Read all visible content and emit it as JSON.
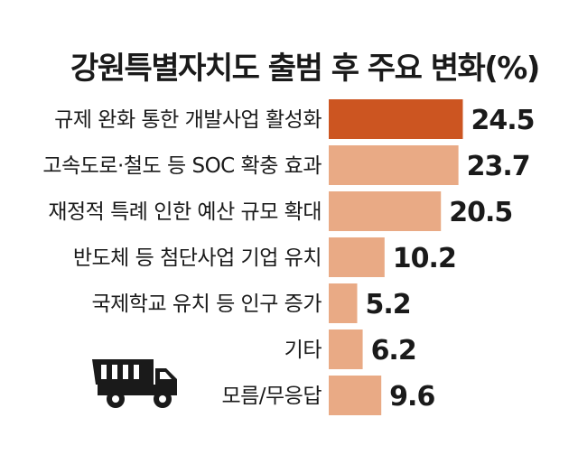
{
  "chart_data": {
    "type": "bar",
    "orientation": "horizontal",
    "title": "강원특별자치도 출범 후 주요 변화(%)",
    "categories": [
      "규제 완화 통한 개발사업 활성화",
      "고속도로·철도 등 SOC 확충 효과",
      "재정적 특례 인한 예산 규모 확대",
      "반도체 등 첨단사업 기업 유치",
      "국제학교 유치 등 인구 증가",
      "기타",
      "모름/무응답"
    ],
    "values": [
      24.5,
      23.7,
      20.5,
      10.2,
      5.2,
      6.2,
      9.6
    ],
    "value_labels": [
      "24.5",
      "23.7",
      "20.5",
      "10.2",
      "5.2",
      "6.2",
      "9.6"
    ],
    "xlim": [
      0,
      30
    ],
    "grid": false,
    "legend": "none",
    "colors": {
      "highlight": "#cc5521",
      "bar": "#e9aa85",
      "text": "#1a1a1a",
      "icon": "#1a1a1a"
    },
    "icon": "dump-truck-icon"
  }
}
